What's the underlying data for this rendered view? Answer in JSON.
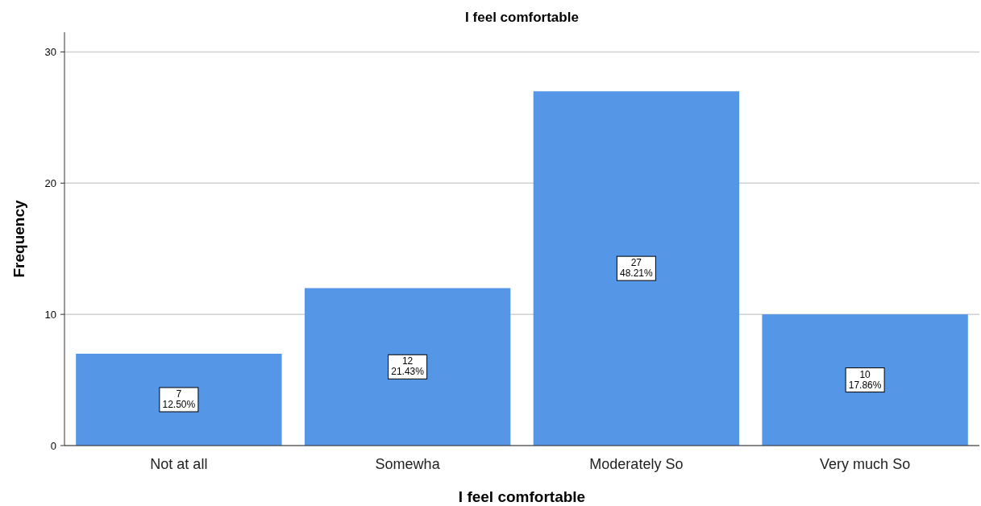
{
  "chart_data": {
    "type": "bar",
    "title": "I feel comfortable",
    "xlabel": "I feel comfortable",
    "ylabel": "Frequency",
    "categories": [
      "Not at all",
      "Somewha",
      "Moderately So",
      "Very much So"
    ],
    "values": [
      7,
      12,
      27,
      10
    ],
    "color": "#5596e6",
    "value_labels": [
      "7\n12.50%",
      "12\n21.43%",
      "27\n48.21%",
      "10\n17.86%"
    ],
    "ylim": [
      0,
      31.5
    ],
    "yticks": [
      0,
      10,
      20,
      30
    ],
    "grid": "y"
  }
}
